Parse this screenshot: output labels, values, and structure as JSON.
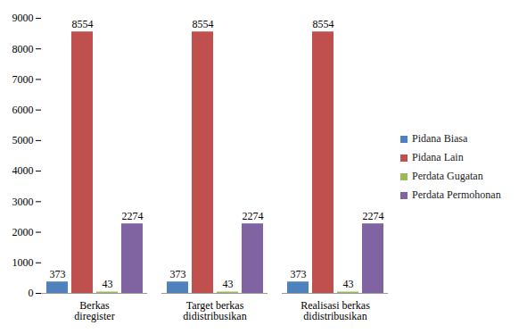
{
  "chart_data": {
    "type": "bar",
    "categories": [
      "Berkas diregister",
      "Target berkas didistribusikan",
      "Realisasi berkas didistribusikan"
    ],
    "series": [
      {
        "name": "Pidana Biasa",
        "color": "#4f81bd",
        "values": [
          373,
          373,
          373
        ]
      },
      {
        "name": "Pidana Lain",
        "color": "#c0504d",
        "values": [
          8554,
          8554,
          8554
        ]
      },
      {
        "name": "Perdata Gugatan",
        "color": "#9bbb59",
        "values": [
          43,
          43,
          43
        ]
      },
      {
        "name": "Perdata Permohonan",
        "color": "#8064a2",
        "values": [
          2274,
          2274,
          2274
        ]
      }
    ],
    "ylim": [
      0,
      9000
    ],
    "yticks": [
      0,
      1000,
      2000,
      3000,
      4000,
      5000,
      6000,
      7000,
      8000,
      9000
    ],
    "grid": false,
    "legend": "right",
    "data_labels": true
  }
}
